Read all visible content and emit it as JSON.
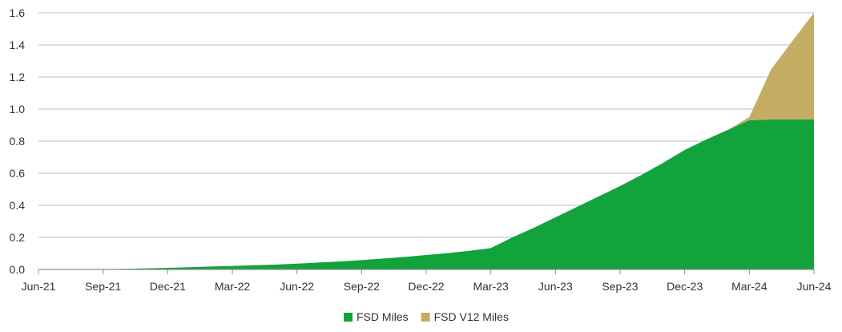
{
  "chart_data": {
    "type": "area",
    "stacked": true,
    "x": [
      "Jun-21",
      "Jul-21",
      "Aug-21",
      "Sep-21",
      "Oct-21",
      "Nov-21",
      "Dec-21",
      "Jan-22",
      "Feb-22",
      "Mar-22",
      "Apr-22",
      "May-22",
      "Jun-22",
      "Jul-22",
      "Aug-22",
      "Sep-22",
      "Oct-22",
      "Nov-22",
      "Dec-22",
      "Jan-23",
      "Feb-23",
      "Mar-23",
      "Apr-23",
      "May-23",
      "Jun-23",
      "Jul-23",
      "Aug-23",
      "Sep-23",
      "Oct-23",
      "Nov-23",
      "Dec-23",
      "Jan-24",
      "Feb-24",
      "Mar-24",
      "Apr-24",
      "May-24",
      "Jun-24"
    ],
    "x_tick_labels": [
      "Jun-21",
      "Sep-21",
      "Dec-21",
      "Mar-22",
      "Jun-22",
      "Sep-22",
      "Dec-22",
      "Mar-23",
      "Jun-23",
      "Sep-23",
      "Dec-23",
      "Mar-24",
      "Jun-24"
    ],
    "series": [
      {
        "name": "FSD Miles",
        "color": "#12a33c",
        "values": [
          0.0,
          0.0,
          0.0,
          0.002,
          0.004,
          0.007,
          0.01,
          0.014,
          0.018,
          0.022,
          0.026,
          0.03,
          0.036,
          0.043,
          0.05,
          0.058,
          0.068,
          0.078,
          0.09,
          0.102,
          0.116,
          0.133,
          0.2,
          0.26,
          0.325,
          0.39,
          0.455,
          0.52,
          0.59,
          0.665,
          0.745,
          0.81,
          0.87,
          0.93,
          0.935,
          0.935,
          0.935
        ]
      },
      {
        "name": "FSD V12 Miles",
        "color": "#c4ad62",
        "values": [
          0,
          0,
          0,
          0,
          0,
          0,
          0,
          0,
          0,
          0,
          0,
          0,
          0,
          0,
          0,
          0,
          0,
          0,
          0,
          0,
          0,
          0,
          0,
          0,
          0,
          0,
          0,
          0,
          0,
          0,
          0,
          0,
          0,
          0.02,
          0.31,
          0.49,
          0.665
        ]
      }
    ],
    "y_ticks": [
      "0.0",
      "0.2",
      "0.4",
      "0.6",
      "0.8",
      "1.0",
      "1.2",
      "1.4",
      "1.6"
    ],
    "ylim": [
      0,
      1.6
    ],
    "grid": "horizontal",
    "legend_position": "bottom-center"
  }
}
